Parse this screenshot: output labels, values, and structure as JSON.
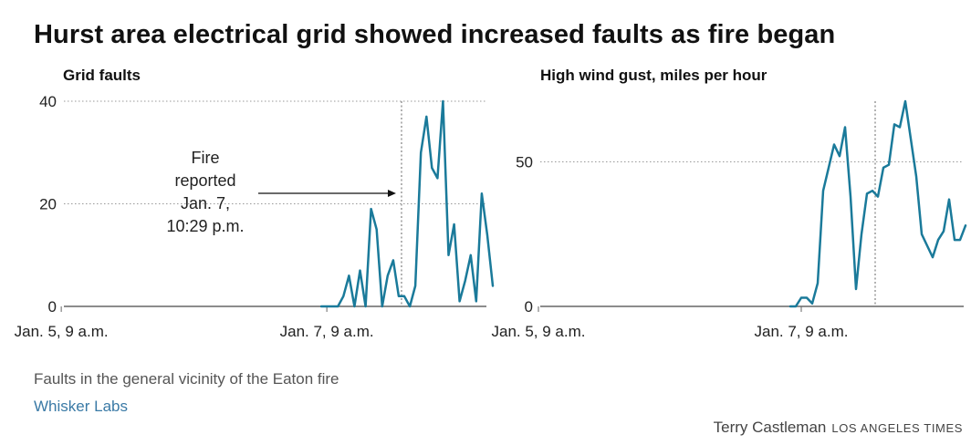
{
  "title": "Hurst area electrical grid showed increased faults as fire began",
  "note": "Faults in the general vicinity of the Eaton fire",
  "source": "Whisker Labs",
  "credit": {
    "name": "Terry Castleman",
    "org": "LOS ANGELES TIMES"
  },
  "colors": {
    "line": "#1a7a9a",
    "grid": "#999999",
    "marker": "#999999",
    "axis": "#666666"
  },
  "chart_data": [
    {
      "type": "line",
      "title": "Grid faults",
      "x_unit": "hours since Jan. 5, 9 a.m.",
      "xlim": [
        -2,
        78
      ],
      "ylim": [
        0,
        40
      ],
      "yticks": [
        0,
        20,
        40
      ],
      "xticks": [
        {
          "value": 0,
          "label": "Jan. 5, 9 a.m."
        },
        {
          "value": 48,
          "label": "Jan. 7, 9 a.m."
        }
      ],
      "grid": true,
      "marker": {
        "x": 61.5,
        "label": "Fire reported Jan. 7, 10:29 p.m.",
        "label_lines": [
          "Fire",
          "reported",
          "Jan. 7,",
          "10:29 p.m."
        ]
      },
      "series": [
        {
          "x": [
            47,
            50,
            51,
            52,
            53,
            54,
            55,
            56,
            57,
            58,
            59,
            60,
            61,
            62,
            63,
            64,
            65,
            66,
            67,
            68,
            69,
            70,
            71,
            72,
            73,
            74,
            75,
            76,
            77,
            78
          ],
          "y": [
            0,
            0,
            2,
            6,
            0,
            7,
            0,
            19,
            15,
            0,
            6,
            9,
            2,
            2,
            0,
            4,
            30,
            37,
            27,
            25,
            40,
            10,
            16,
            1,
            5,
            10,
            1,
            22,
            14,
            4
          ]
        }
      ]
    },
    {
      "type": "line",
      "title": "High wind gust, miles per hour",
      "xlim": [
        -2,
        78
      ],
      "ylim": [
        0,
        71
      ],
      "yticks": [
        0,
        50
      ],
      "xticks": [
        {
          "value": 0,
          "label": "Jan. 5, 9 a.m."
        },
        {
          "value": 48,
          "label": "Jan. 7, 9 a.m."
        }
      ],
      "grid": true,
      "marker": {
        "x": 61.5
      },
      "series": [
        {
          "x": [
            46,
            47,
            48,
            49,
            50,
            51,
            52,
            53,
            54,
            55,
            56,
            57,
            58,
            59,
            60,
            61,
            62,
            63,
            64,
            65,
            66,
            67,
            68,
            69,
            70,
            71,
            72,
            73,
            74,
            75,
            76,
            77,
            78
          ],
          "y": [
            0,
            0,
            3,
            3,
            1,
            8,
            40,
            48,
            56,
            52,
            62,
            38,
            6,
            25,
            39,
            40,
            38,
            48,
            49,
            63,
            62,
            71,
            58,
            45,
            25,
            21,
            17,
            23,
            26,
            37,
            23,
            23,
            28
          ]
        }
      ]
    }
  ]
}
